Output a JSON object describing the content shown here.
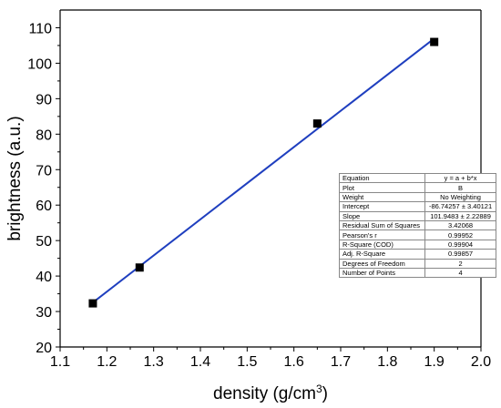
{
  "chart_data": {
    "type": "scatter",
    "title": "",
    "xlabel": "density (g/cm",
    "xlabel_sup": "3",
    "xlabel_end": ")",
    "ylabel": "brightness (a.u.)",
    "xlim": [
      1.1,
      2.0
    ],
    "ylim": [
      20,
      115
    ],
    "x_ticks": [
      "1.1",
      "1.2",
      "1.3",
      "1.4",
      "1.5",
      "1.6",
      "1.7",
      "1.8",
      "1.9",
      "2.0"
    ],
    "y_ticks": [
      "20",
      "30",
      "40",
      "50",
      "60",
      "70",
      "80",
      "90",
      "100",
      "110"
    ],
    "grid": false,
    "series": [
      {
        "marker": "square",
        "color": "#000000",
        "x": [
          1.17,
          1.27,
          1.65,
          1.9
        ],
        "y": [
          32.3,
          42.4,
          83.0,
          106.0
        ]
      }
    ],
    "fit_line": {
      "intercept": -86.74257,
      "slope": 101.9483,
      "x_range": [
        1.17,
        1.9
      ],
      "color": "#1f3fbf"
    },
    "fit_table": [
      [
        "Equation",
        "y = a + b*x"
      ],
      [
        "Plot",
        "B"
      ],
      [
        "Weight",
        "No Weighting"
      ],
      [
        "Intercept",
        "-86.74257 ± 3.40121"
      ],
      [
        "Slope",
        "101.9483 ± 2.22889"
      ],
      [
        "Residual Sum of Squares",
        "3.42068"
      ],
      [
        "Pearson's r",
        "0.99952"
      ],
      [
        "R-Square (COD)",
        "0.99904"
      ],
      [
        "Adj. R-Square",
        "0.99857"
      ],
      [
        "Degrees of Freedom",
        "2"
      ],
      [
        "Number of Points",
        "4"
      ]
    ]
  }
}
